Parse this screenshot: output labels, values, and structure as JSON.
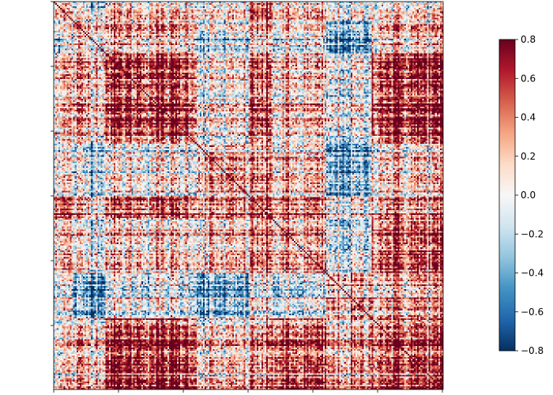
{
  "chart_data": {
    "type": "heatmap",
    "title": "",
    "xlabel": "",
    "ylabel": "",
    "matrix_size": 240,
    "diagonal_value": 1.0,
    "colormap": "RdBu_r",
    "colorbar": {
      "vmin": -0.8,
      "vmax": 0.8,
      "ticks": [
        0.8,
        0.6,
        0.4,
        0.2,
        0.0,
        -0.2,
        -0.4,
        -0.6,
        -0.8
      ],
      "tick_labels": [
        "0.8",
        "0.6",
        "0.4",
        "0.2",
        "0.0",
        "−0.2",
        "−0.4",
        "−0.6",
        "−0.8"
      ],
      "placement": "right"
    },
    "axes": {
      "x_tick_count": 7,
      "y_tick_count": 6,
      "tick_labels_visible": false
    },
    "grid": false
  },
  "colors": {
    "low": "#053061",
    "mid": "#f7f7f7",
    "high": "#67001f"
  }
}
